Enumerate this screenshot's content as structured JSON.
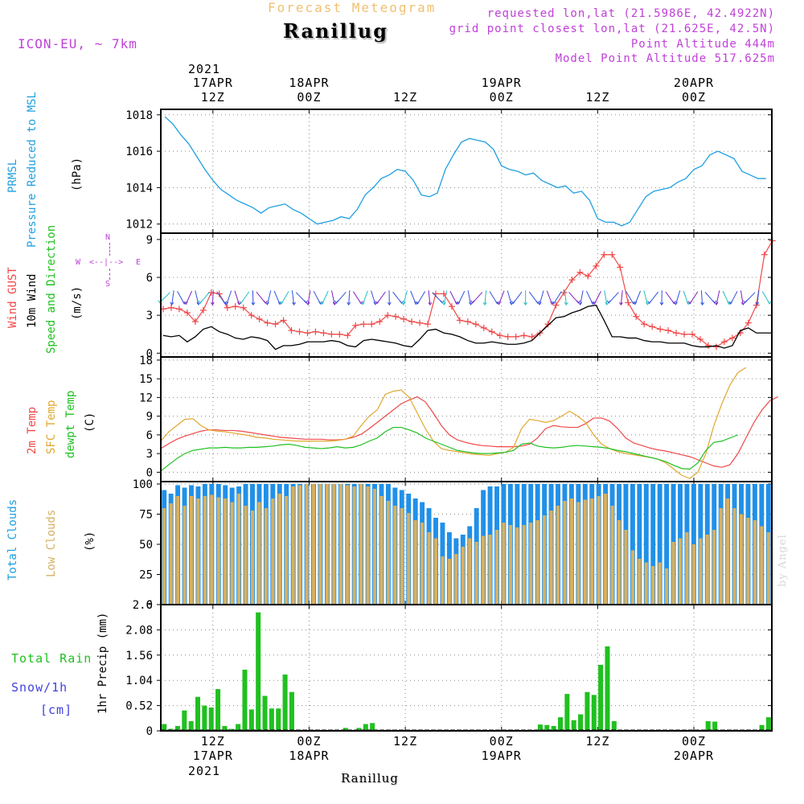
{
  "header": {
    "supertitle": "Forecast Meteogram",
    "title": "Ranillug",
    "model": "ICON-EU, ~ 7km",
    "requested": "requested lon,lat (21.5986E, 42.4922N)",
    "gridpoint": "grid point closest lon,lat (21.625E, 42.5N)",
    "point_alt": "Point Altitude 444m",
    "model_alt": "Model Point Altitude 517.625m"
  },
  "time_axis": {
    "top_year": "2021",
    "labels": [
      {
        "hour": 12,
        "l1": "17APR",
        "l2": "12Z"
      },
      {
        "hour": 24,
        "l1": "18APR",
        "l2": "00Z"
      },
      {
        "hour": 36,
        "l1": "",
        "l2": "12Z"
      },
      {
        "hour": 48,
        "l1": "19APR",
        "l2": "00Z"
      },
      {
        "hour": 60,
        "l1": "",
        "l2": "12Z"
      },
      {
        "hour": 72,
        "l1": "20APR",
        "l2": "00Z"
      }
    ],
    "bottom": [
      {
        "hour": 12,
        "l1": "12Z",
        "l2": "17APR"
      },
      {
        "hour": 24,
        "l1": "00Z",
        "l2": "18APR"
      },
      {
        "hour": 36,
        "l1": "12Z",
        "l2": ""
      },
      {
        "hour": 48,
        "l1": "00Z",
        "l2": "19APR"
      },
      {
        "hour": 60,
        "l1": "12Z",
        "l2": ""
      },
      {
        "hour": 72,
        "l1": "00Z",
        "l2": "20APR"
      }
    ],
    "bottom_year": "2021",
    "footer": "Ranillug"
  },
  "labels": {
    "prmsl": "PRMSL",
    "prmsl_desc": "Pressure Reduced to MSL",
    "prmsl_unit": "(hPa)",
    "gust": "Wind GUST",
    "wind10": "10m Wind",
    "wind_dir": "Speed and Direction",
    "wind_unit": "(m/s)",
    "t2m": "2m Temp",
    "sfc": "SFC Temp",
    "dewpt": "dewpt Temp",
    "temp_unit": "(C)",
    "total_clouds": "Total Clouds",
    "low_clouds": "Low Clouds",
    "cloud_unit": "(%)",
    "total_rain": "Total  Rain",
    "snow": "Snow/1h",
    "snow_unit": "[cm]",
    "precip_unit": "1hr Precip (mm)",
    "watermark": "by Angel",
    "compass_n": "N",
    "compass_s": "S",
    "compass_w": "W",
    "compass_e": "E",
    "compass_axis": "<--|-->"
  },
  "colors": {
    "prmsl": "#20a0e0",
    "gust": "#f04848",
    "wind10": "#000000",
    "t2m": "#f04848",
    "sfc": "#e0a830",
    "dewpt": "#20c020",
    "total_clouds": "#2090e8",
    "low_clouds": "#d8b060",
    "rain": "#20c020",
    "snow": "#4040e0",
    "compass": "#c040d8"
  },
  "chart_data": [
    {
      "type": "line",
      "title": "PRMSL Pressure Reduced to MSL",
      "ylabel": "(hPa)",
      "ylim": [
        1011.5,
        1018.3
      ],
      "yticks": [
        1012,
        1014,
        1016,
        1018
      ],
      "x_range_hours": [
        0,
        76
      ],
      "series": [
        {
          "name": "PRMSL",
          "values": [
            1017.9,
            1017.5,
            1016.9,
            1016.4,
            1015.7,
            1015.0,
            1014.4,
            1013.9,
            1013.6,
            1013.3,
            1013.1,
            1012.9,
            1012.6,
            1012.9,
            1013.0,
            1013.1,
            1012.8,
            1012.6,
            1012.3,
            1012.0,
            1012.1,
            1012.2,
            1012.4,
            1012.3,
            1012.8,
            1013.6,
            1014.0,
            1014.5,
            1014.7,
            1015.0,
            1014.9,
            1014.4,
            1013.6,
            1013.5,
            1013.7,
            1015.0,
            1015.8,
            1016.5,
            1016.7,
            1016.6,
            1016.5,
            1016.1,
            1015.2,
            1015.0,
            1014.9,
            1014.7,
            1014.8,
            1014.4,
            1014.2,
            1014.0,
            1014.1,
            1013.7,
            1013.8,
            1013.3,
            1012.3,
            1012.1,
            1012.1,
            1011.9,
            1012.1,
            1012.8,
            1013.5,
            1013.8,
            1013.9,
            1014.0,
            1014.3,
            1014.5,
            1015.0,
            1015.2,
            1015.8,
            1016.0,
            1015.8,
            1015.6,
            1014.9,
            1014.7,
            1014.5,
            1014.5
          ]
        }
      ]
    },
    {
      "type": "line",
      "title": "Wind GUST / 10m Wind Speed and Direction",
      "ylabel": "(m/s)",
      "ylim": [
        -0.3,
        9.5
      ],
      "yticks": [
        0,
        3,
        6,
        9
      ],
      "series": [
        {
          "name": "Wind GUST",
          "values": [
            3.5,
            3.6,
            3.5,
            3.2,
            2.5,
            3.4,
            4.8,
            4.7,
            3.6,
            3.7,
            3.6,
            3.0,
            2.7,
            2.4,
            2.3,
            2.6,
            1.8,
            1.7,
            1.6,
            1.7,
            1.6,
            1.5,
            1.5,
            1.4,
            2.2,
            2.3,
            2.3,
            2.5,
            3.0,
            2.9,
            2.7,
            2.5,
            2.4,
            2.3,
            4.7,
            4.7,
            3.7,
            2.6,
            2.5,
            2.3,
            2.0,
            1.7,
            1.4,
            1.3,
            1.3,
            1.4,
            1.3,
            1.6,
            2.3,
            3.8,
            4.8,
            5.8,
            6.4,
            6.1,
            6.9,
            7.8,
            7.8,
            6.8,
            4.0,
            2.9,
            2.3,
            2.1,
            1.9,
            1.8,
            1.6,
            1.5,
            1.5,
            1.1,
            0.6,
            0.5,
            0.9,
            1.2,
            1.6,
            2.4,
            3.8,
            7.8,
            8.9
          ]
        },
        {
          "name": "10m Wind",
          "values": [
            1.4,
            1.3,
            1.4,
            0.9,
            1.3,
            1.9,
            2.1,
            1.7,
            1.5,
            1.2,
            1.1,
            1.3,
            1.2,
            1.0,
            0.3,
            0.6,
            0.6,
            0.7,
            0.9,
            0.9,
            0.9,
            1.0,
            0.9,
            0.6,
            0.5,
            1.0,
            1.1,
            1.0,
            0.9,
            0.8,
            0.6,
            0.5,
            1.1,
            1.8,
            1.9,
            1.6,
            1.5,
            1.3,
            1.0,
            0.8,
            0.8,
            0.9,
            0.8,
            0.7,
            0.7,
            0.8,
            1.0,
            1.6,
            2.2,
            2.8,
            2.9,
            3.2,
            3.4,
            3.7,
            3.8,
            2.6,
            1.3,
            1.3,
            1.2,
            1.2,
            1.0,
            0.9,
            0.9,
            0.8,
            0.8,
            0.8,
            0.6,
            0.5,
            0.5,
            0.6,
            0.4,
            0.6,
            1.8,
            2.0,
            1.6,
            1.6,
            1.6
          ]
        }
      ]
    },
    {
      "type": "line",
      "title": "2m Temp / SFC Temp / dewpt Temp",
      "ylabel": "(C)",
      "ylim": [
        -1.5,
        18.5
      ],
      "yticks": [
        0,
        3,
        6,
        9,
        12,
        15,
        18
      ],
      "series": [
        {
          "name": "2m Temp",
          "values": [
            3.8,
            4.6,
            5.3,
            5.8,
            6.2,
            6.6,
            6.8,
            6.8,
            6.7,
            6.7,
            6.6,
            6.4,
            6.2,
            6.0,
            5.8,
            5.6,
            5.5,
            5.4,
            5.3,
            5.3,
            5.3,
            5.2,
            5.2,
            5.3,
            5.6,
            6.1,
            7.0,
            8.0,
            9.0,
            10.0,
            11.0,
            11.6,
            12.1,
            11.3,
            9.5,
            7.5,
            6.0,
            5.2,
            4.8,
            4.5,
            4.3,
            4.2,
            4.1,
            4.1,
            4.1,
            4.2,
            4.5,
            5.5,
            7.0,
            7.5,
            7.3,
            7.2,
            7.2,
            7.8,
            8.7,
            8.7,
            8.2,
            7.0,
            5.5,
            4.7,
            4.3,
            3.9,
            3.6,
            3.4,
            3.1,
            2.8,
            2.5,
            2.0,
            1.5,
            1.0,
            0.8,
            1.2,
            3.0,
            5.5,
            8.0,
            10.0,
            11.5,
            12.1
          ]
        },
        {
          "name": "SFC Temp",
          "values": [
            5.0,
            6.5,
            7.5,
            8.5,
            8.6,
            7.5,
            6.8,
            6.6,
            6.5,
            6.3,
            6.1,
            5.9,
            5.6,
            5.5,
            5.3,
            5.2,
            5.1,
            5.0,
            5.0,
            5.0,
            5.0,
            5.0,
            5.1,
            5.3,
            5.8,
            7.5,
            9.0,
            10.0,
            12.5,
            13.0,
            13.2,
            12.0,
            9.5,
            7.0,
            5.0,
            3.8,
            3.5,
            3.3,
            3.1,
            2.9,
            2.8,
            2.7,
            3.0,
            3.2,
            4.0,
            7.0,
            8.5,
            8.3,
            8.0,
            8.3,
            9.0,
            9.8,
            9.0,
            8.0,
            6.0,
            4.5,
            3.8,
            3.3,
            3.0,
            2.8,
            2.6,
            2.4,
            2.1,
            1.5,
            0.5,
            -0.5,
            -1.0,
            0.0,
            3.0,
            7.5,
            11.0,
            14.0,
            16.0,
            16.8
          ]
        },
        {
          "name": "dewpt Temp",
          "values": [
            0.2,
            1.2,
            2.2,
            3.0,
            3.5,
            3.7,
            3.9,
            3.9,
            4.0,
            3.9,
            3.9,
            4.0,
            4.0,
            4.1,
            4.2,
            4.4,
            4.5,
            4.3,
            4.0,
            3.9,
            3.8,
            3.9,
            4.1,
            3.9,
            4.0,
            4.4,
            5.0,
            5.5,
            6.5,
            7.2,
            7.2,
            6.8,
            6.3,
            5.5,
            5.0,
            4.5,
            4.0,
            3.5,
            3.3,
            3.1,
            3.0,
            3.0,
            3.1,
            3.2,
            3.5,
            4.5,
            4.7,
            4.2,
            4.0,
            3.9,
            4.0,
            4.2,
            4.3,
            4.2,
            4.1,
            4.0,
            3.8,
            3.5,
            3.3,
            3.0,
            2.7,
            2.4,
            2.1,
            1.7,
            1.1,
            0.6,
            0.5,
            1.5,
            3.5,
            4.8,
            5.0,
            5.5,
            6.0
          ]
        }
      ]
    },
    {
      "type": "bar",
      "title": "Total Clouds / Low Clouds",
      "ylabel": "(%)",
      "ylim": [
        0,
        102
      ],
      "yticks": [
        0,
        25,
        50,
        75,
        100
      ],
      "series": [
        {
          "name": "Total Clouds",
          "values": [
            95,
            92,
            99,
            97,
            99,
            98,
            100,
            100,
            100,
            99,
            97,
            98,
            100,
            100,
            100,
            100,
            100,
            100,
            100,
            100,
            100,
            100,
            100,
            100,
            100,
            100,
            100,
            100,
            100,
            100,
            100,
            100,
            100,
            100,
            97,
            95,
            92,
            88,
            85,
            80,
            72,
            68,
            60,
            55,
            58,
            65,
            80,
            95,
            98,
            98,
            100,
            100,
            100,
            100,
            100,
            100,
            100,
            100,
            100,
            100,
            100,
            100,
            100,
            100,
            100,
            100,
            100,
            100,
            100,
            100,
            100,
            100,
            100,
            100,
            100,
            100,
            100,
            100,
            100,
            100,
            100,
            100,
            100,
            100,
            100,
            100,
            100,
            100,
            100,
            100
          ]
        },
        {
          "name": "Low Clouds",
          "values": [
            80,
            84,
            90,
            82,
            90,
            88,
            90,
            91,
            89,
            88,
            85,
            92,
            82,
            78,
            85,
            80,
            88,
            92,
            90,
            98,
            99,
            100,
            100,
            100,
            100,
            100,
            100,
            99,
            98,
            100,
            98,
            96,
            90,
            86,
            82,
            80,
            76,
            70,
            68,
            60,
            55,
            40,
            38,
            42,
            48,
            55,
            52,
            57,
            58,
            62,
            68,
            66,
            64,
            66,
            68,
            70,
            74,
            78,
            82,
            86,
            88,
            85,
            87,
            88,
            90,
            92,
            82,
            70,
            62,
            45,
            38,
            35,
            32,
            35,
            30,
            52,
            55,
            60,
            50,
            55,
            58,
            62,
            80,
            88,
            80,
            75,
            72,
            70,
            65,
            60
          ]
        }
      ]
    },
    {
      "type": "bar",
      "title": "1hr Precip",
      "ylabel": "1hr Precip (mm)",
      "ylim": [
        0,
        2.6
      ],
      "yticks": [
        0,
        0.52,
        1.04,
        1.56,
        2.08,
        2.6
      ],
      "series": [
        {
          "name": "Total Rain",
          "values": [
            0.14,
            0.04,
            0.1,
            0.42,
            0.2,
            0.7,
            0.52,
            0.48,
            0.86,
            0.1,
            0.04,
            0.14,
            1.26,
            0.44,
            2.44,
            0.72,
            0.46,
            0.46,
            1.16,
            0.8,
            0,
            0,
            0,
            0,
            0,
            0,
            0,
            0.06,
            0,
            0.06,
            0.14,
            0.16,
            0,
            0,
            0,
            0,
            0,
            0,
            0,
            0,
            0,
            0,
            0,
            0,
            0,
            0,
            0,
            0,
            0,
            0,
            0,
            0,
            0,
            0,
            0,
            0,
            0.13,
            0.12,
            0.1,
            0.28,
            0.76,
            0.22,
            0.34,
            0.8,
            0.74,
            1.36,
            1.74,
            0.2,
            0,
            0,
            0,
            0,
            0,
            0,
            0,
            0,
            0,
            0,
            0,
            0,
            0,
            0.2,
            0.19,
            0,
            0,
            0,
            0,
            0,
            0,
            0.12,
            0.28
          ]
        }
      ]
    }
  ]
}
